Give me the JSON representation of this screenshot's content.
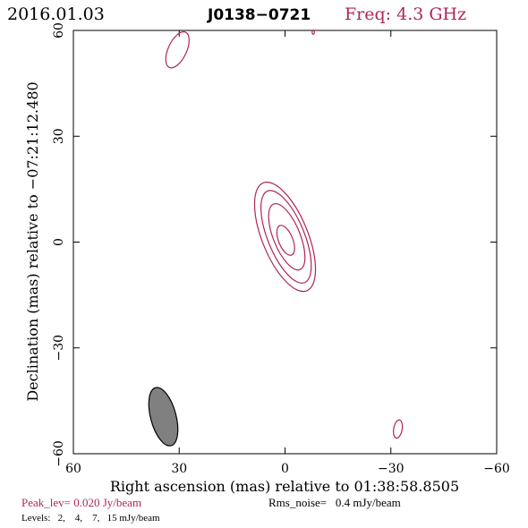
{
  "header": {
    "date": "2016.01.03",
    "source": "J0138−0721",
    "freq": "Freq: 4.3 GHz"
  },
  "footer": {
    "peak": "Peak_lev=  0.020 Jy/beam",
    "rms": "Rms_noise=   0.4 mJy/beam",
    "levels": "Levels:   2,    4,    7,   15 mJy/beam"
  },
  "colors": {
    "accent": "#b0245a",
    "beam_fill": "#808080",
    "axis": "#000000"
  },
  "chart_data": {
    "type": "contour",
    "xlabel": "Right ascension (mas) relative to 01:38:58.8505",
    "ylabel": "Declination (mas) relative to −07:21:12.480",
    "xlim": [
      60,
      -60
    ],
    "ylim": [
      -60,
      60
    ],
    "xticks": [
      60,
      30,
      0,
      -30,
      -60
    ],
    "yticks": [
      -60,
      -30,
      0,
      30,
      60
    ],
    "xtick_labels": [
      "60",
      "30",
      "0",
      "−30",
      "−60"
    ],
    "ytick_labels": [
      "−60",
      "−30",
      "0",
      "30",
      "60"
    ],
    "levels_mJy_per_beam": [
      2,
      4,
      7,
      15
    ],
    "contours": [
      {
        "name": "core-level-1",
        "cx": 0.0,
        "cy": 1.5,
        "a": 16.5,
        "b": 6.5,
        "pa": -22
      },
      {
        "name": "core-level-2",
        "cx": -0.3,
        "cy": 1.5,
        "a": 14.0,
        "b": 5.2,
        "pa": -22
      },
      {
        "name": "core-level-3",
        "cx": -0.5,
        "cy": 1.5,
        "a": 10.0,
        "b": 3.8,
        "pa": -22
      },
      {
        "name": "core-level-4",
        "cx": -0.2,
        "cy": 0.5,
        "a": 4.5,
        "b": 2.0,
        "pa": -22
      },
      {
        "name": "blob-top-left",
        "cx": 30.5,
        "cy": 54.5,
        "a": 5.5,
        "b": 2.6,
        "pa": 25
      },
      {
        "name": "blob-bottom-right",
        "cx": -32.0,
        "cy": -53.0,
        "a": 2.6,
        "b": 1.2,
        "pa": 10
      },
      {
        "name": "blob-top-edge",
        "cx": -8.0,
        "cy": 59.5,
        "a": 0.6,
        "b": 0.3,
        "pa": 0
      }
    ],
    "beam": {
      "cx": 34.5,
      "cy": -49.5,
      "major": 8.5,
      "minor": 3.6,
      "pa": 15
    }
  }
}
